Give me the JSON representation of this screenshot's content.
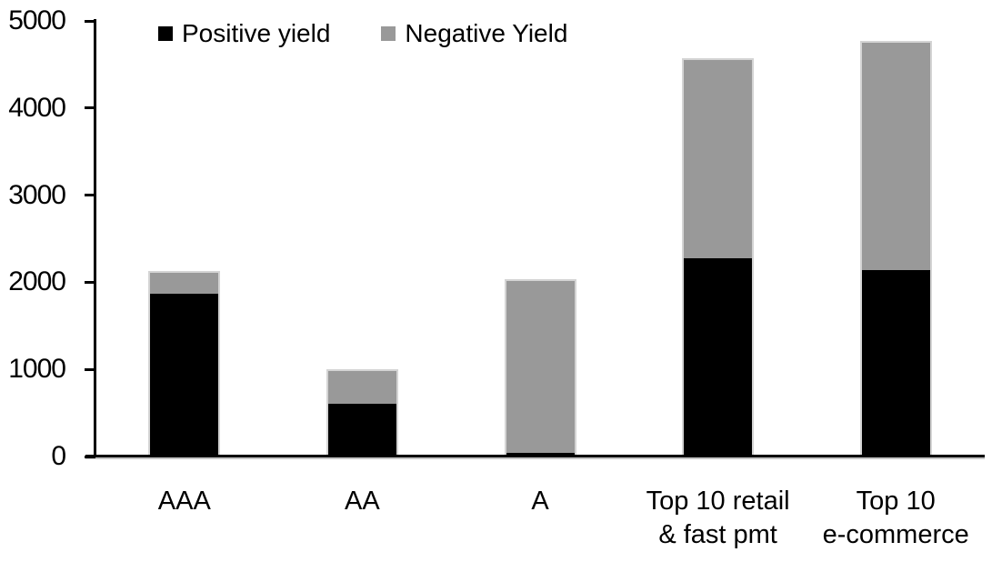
{
  "chart_data": {
    "type": "bar",
    "stacked": true,
    "title": "",
    "xlabel": "",
    "ylabel": "",
    "ylim": [
      0,
      5000
    ],
    "yticks": [
      0,
      1000,
      2000,
      3000,
      4000,
      5000
    ],
    "grid": false,
    "legend_position": "top",
    "categories": [
      "AAA",
      "AA",
      "A",
      "Top 10 retail\n& fast pmt",
      "Top 10\ne-commerce"
    ],
    "series": [
      {
        "name": "Positive yield",
        "color": "#000000",
        "values": [
          1890,
          620,
          45,
          2290,
          2150
        ]
      },
      {
        "name": "Negative Yield",
        "color": "#999999",
        "values": [
          235,
          385,
          1990,
          2280,
          2620
        ]
      }
    ],
    "totals": [
      2125,
      1005,
      2035,
      4570,
      4770
    ]
  },
  "colors": {
    "positive": "#000000",
    "negative": "#999999",
    "axis": "#000000",
    "bar_border": "#d4d4d4",
    "background": "#ffffff"
  }
}
